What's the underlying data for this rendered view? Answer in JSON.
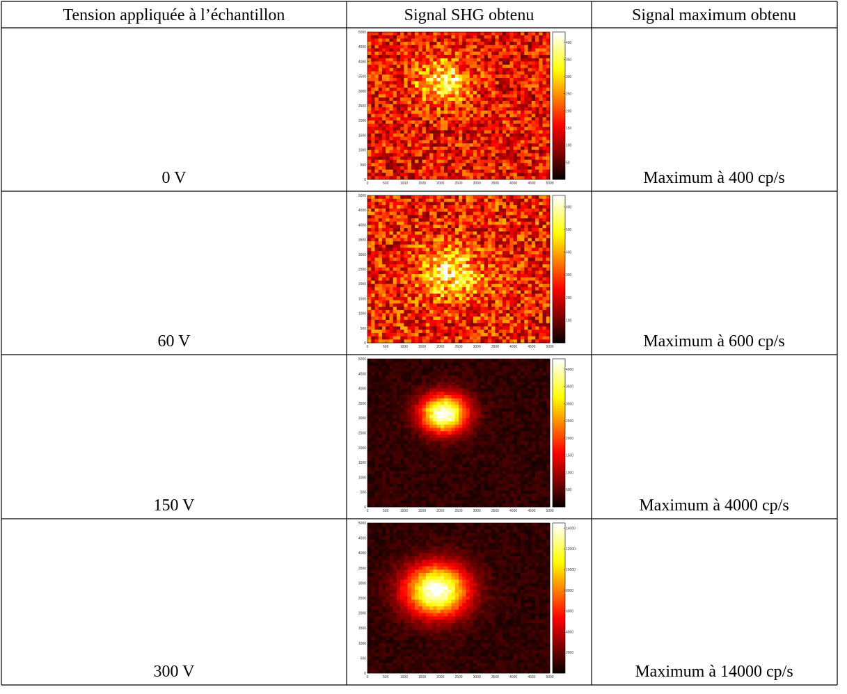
{
  "table": {
    "header": [
      "Tension appliquée à l’échantillon",
      "Signal SHG obtenu",
      "Signal maximum obtenu"
    ],
    "rows": [
      {
        "voltage": "0 V",
        "maximum": "Maximum à 400 cp/s",
        "map": {
          "xlim": [
            0,
            5000
          ],
          "ylim": [
            0,
            5000
          ],
          "xticks": [
            0,
            500,
            1000,
            1500,
            2000,
            2500,
            3000,
            3500,
            4000,
            4500,
            5000
          ],
          "yticks": [
            0,
            500,
            1000,
            1500,
            2000,
            2500,
            3000,
            3500,
            4000,
            4500,
            5000
          ],
          "clim": [
            0,
            430
          ],
          "cticks": [
            50,
            100,
            150,
            200,
            250,
            300,
            350,
            400
          ]
        }
      },
      {
        "voltage": "60 V",
        "maximum": "Maximum à 600 cp/s",
        "map": {
          "xlim": [
            0,
            5000
          ],
          "ylim": [
            0,
            5000
          ],
          "xticks": [
            0,
            500,
            1000,
            1500,
            2000,
            2500,
            3000,
            3500,
            4000,
            4500,
            5000
          ],
          "yticks": [
            0,
            500,
            1000,
            1500,
            2000,
            2500,
            3000,
            3500,
            4000,
            4500,
            5000
          ],
          "clim": [
            0,
            650
          ],
          "cticks": [
            100,
            200,
            300,
            400,
            500,
            600
          ]
        }
      },
      {
        "voltage": "150 V",
        "maximum": "Maximum à 4000 cp/s",
        "map": {
          "xlim": [
            0,
            5000
          ],
          "ylim": [
            0,
            5000
          ],
          "xticks": [
            0,
            500,
            1000,
            1500,
            2000,
            2500,
            3000,
            3500,
            4000,
            4500,
            5000
          ],
          "yticks": [
            0,
            500,
            1000,
            1500,
            2000,
            2500,
            3000,
            3500,
            4000,
            4500,
            5000
          ],
          "clim": [
            0,
            4300
          ],
          "cticks": [
            500,
            1000,
            1500,
            2000,
            2500,
            3000,
            3500,
            4000
          ]
        }
      },
      {
        "voltage": "300 V",
        "maximum": "Maximum à 14000 cp/s",
        "map": {
          "xlim": [
            0,
            5000
          ],
          "ylim": [
            0,
            5000
          ],
          "xticks": [
            0,
            500,
            1000,
            1500,
            2000,
            2500,
            3000,
            3500,
            4000,
            4500,
            5000
          ],
          "yticks": [
            0,
            500,
            1000,
            1500,
            2000,
            2500,
            3000,
            3500,
            4000,
            4500,
            5000
          ],
          "clim": [
            0,
            14500
          ],
          "cticks": [
            2000,
            4000,
            6000,
            8000,
            10000,
            12000,
            14000
          ]
        }
      }
    ]
  }
}
